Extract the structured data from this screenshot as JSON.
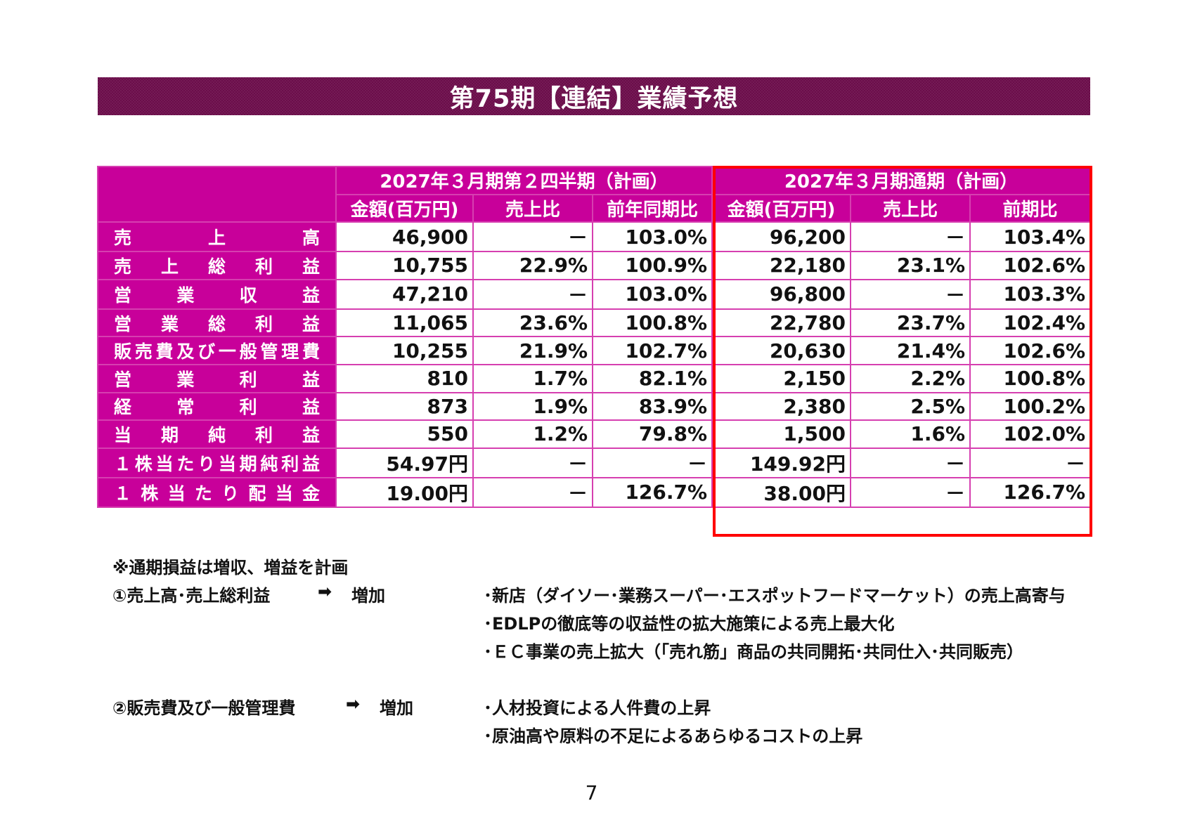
{
  "title": "第75期【連結】業績予想",
  "table": {
    "group_headers": [
      "2027年３月期第２四半期（計画）",
      "2027年３月期通期（計画）"
    ],
    "sub_headers": [
      "金額(百万円)",
      "売上比",
      "前年同期比",
      "金額(百万円)",
      "売上比",
      "前期比"
    ],
    "rows": [
      {
        "label": "売上高",
        "values": [
          "46,900",
          "－",
          "103.0%",
          "96,200",
          "－",
          "103.4%"
        ]
      },
      {
        "label": "売上総利益",
        "values": [
          "10,755",
          "22.9%",
          "100.9%",
          "22,180",
          "23.1%",
          "102.6%"
        ]
      },
      {
        "label": "営業収益",
        "values": [
          "47,210",
          "－",
          "103.0%",
          "96,800",
          "－",
          "103.3%"
        ]
      },
      {
        "label": "営業総利益",
        "values": [
          "11,065",
          "23.6%",
          "100.8%",
          "22,780",
          "23.7%",
          "102.4%"
        ]
      },
      {
        "label": "販売費及び一般管理費",
        "values": [
          "10,255",
          "21.9%",
          "102.7%",
          "20,630",
          "21.4%",
          "102.6%"
        ]
      },
      {
        "label": "営業利益",
        "values": [
          "810",
          "1.7%",
          "82.1%",
          "2,150",
          "2.2%",
          "100.8%"
        ]
      },
      {
        "label": "経常利益",
        "values": [
          "873",
          "1.9%",
          "83.9%",
          "2,380",
          "2.5%",
          "100.2%"
        ]
      },
      {
        "label": "当期純利益",
        "values": [
          "550",
          "1.2%",
          "79.8%",
          "1,500",
          "1.6%",
          "102.0%"
        ]
      },
      {
        "label": "１株当たり当期純利益",
        "values": [
          "54.97円",
          "－",
          "－",
          "149.92円",
          "－",
          "－"
        ]
      },
      {
        "label": "１株当たり配当金",
        "values": [
          "19.00円",
          "－",
          "126.7%",
          "38.00円",
          "－",
          "126.7%"
        ]
      }
    ]
  },
  "notes": {
    "heading": "※通期損益は増収、増益を計画",
    "item1": {
      "label": "①売上高･売上総利益",
      "arrow": "➡",
      "result": "増加",
      "bullets": [
        "･新店（ダイソー･業務スーパー･エスポットフードマーケット）の売上高寄与",
        "･EDLPの徹底等の収益性の拡大施策による売上最大化",
        "･ＥＣ事業の売上拡大（「売れ筋」商品の共同開拓･共同仕入･共同販売）"
      ]
    },
    "item2": {
      "label": "②販売費及び一般管理費",
      "arrow": "➡",
      "result": "増加",
      "bullets": [
        "･人材投資による人件費の上昇",
        "･原油高や原料の不足によるあらゆるコストの上昇"
      ]
    }
  },
  "page_number": "7",
  "colors": {
    "title_bg": "#6b0d4a",
    "header_bg": "#c8009a",
    "grid": "#d63fb0",
    "highlight_frame": "#ff0000"
  }
}
